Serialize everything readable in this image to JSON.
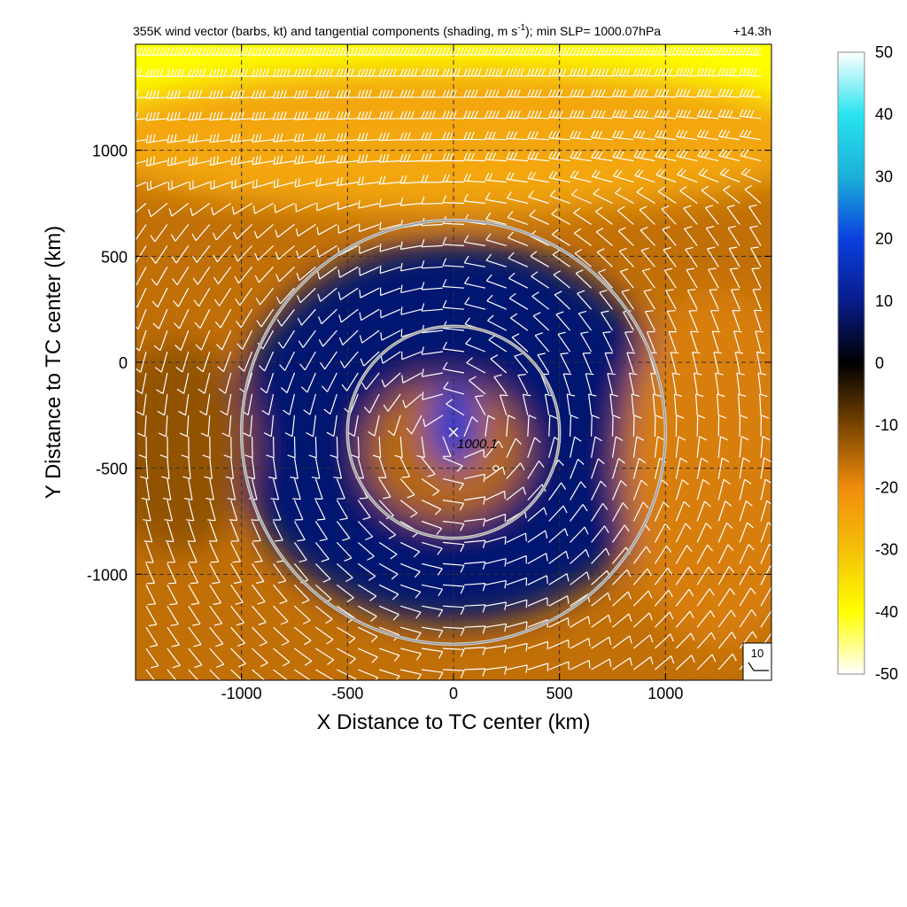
{
  "chart_data": {
    "type": "heatmap",
    "title_parts": {
      "before_sup": "355K wind vector (barbs, kt) and tangential components (shading, m s",
      "sup": "-1",
      "after_sup": "); min SLP= 1000.07hPa",
      "time": "+14.3h"
    },
    "xlabel": "X Distance to TC center (km)",
    "ylabel": "Y Distance to TC center (km)",
    "xlim": [
      -1500,
      1500
    ],
    "ylim": [
      -1500,
      1500
    ],
    "x_ticks": [
      -1000,
      -500,
      0,
      500,
      1000
    ],
    "x_tick_labels": [
      "-1000",
      "-500",
      "0",
      "500",
      "1000"
    ],
    "y_ticks": [
      1000,
      500,
      0,
      -500,
      -1000
    ],
    "y_tick_labels": [
      "1000",
      "500",
      "0",
      "-500",
      "-1000"
    ],
    "grid": true,
    "grid_style": "dashed",
    "colorbar": {
      "range": [
        -50,
        50
      ],
      "ticks": [
        50,
        40,
        30,
        20,
        10,
        0,
        -10,
        -20,
        -30,
        -40,
        -50
      ],
      "tick_labels": [
        "50",
        "40",
        "30",
        "20",
        "10",
        "0",
        "-10",
        "-20",
        "-30",
        "-40",
        "-50"
      ],
      "placement": "right",
      "stops": [
        {
          "value": 50,
          "color": "#ffffff"
        },
        {
          "value": 40,
          "color": "#28e4f0"
        },
        {
          "value": 30,
          "color": "#1ab0d8"
        },
        {
          "value": 20,
          "color": "#0a40e0"
        },
        {
          "value": 10,
          "color": "#081c8c"
        },
        {
          "value": 0,
          "color": "#000000"
        },
        {
          "value": -10,
          "color": "#7a4400"
        },
        {
          "value": -20,
          "color": "#f08c0c"
        },
        {
          "value": -30,
          "color": "#f5c008"
        },
        {
          "value": -40,
          "color": "#ffff00"
        },
        {
          "value": -50,
          "color": "#ffffff"
        }
      ]
    },
    "rings_km": [
      500,
      1000
    ],
    "ring_center_km": [
      0,
      -330
    ],
    "min_slp_marker": {
      "x_km": 0,
      "y_km": -330,
      "label": "1000.1"
    },
    "small_circle_marker": {
      "x_km": 200,
      "y_km": -500
    },
    "reference_barb": {
      "label": "10",
      "placement": "bottom-right"
    },
    "shading_regions": [
      {
        "desc": "upper band",
        "center_km": [
          0,
          1400
        ],
        "radius_km": [
          2000,
          550
        ],
        "value": -40
      },
      {
        "desc": "upper band inner",
        "center_km": [
          0,
          1050
        ],
        "radius_km": [
          1800,
          350
        ],
        "value": -25
      },
      {
        "desc": "ring positive",
        "center_km": [
          0,
          -330
        ],
        "radius_km": [
          1050,
          900
        ],
        "value": 8
      },
      {
        "desc": "core negative",
        "center_km": [
          -40,
          -420
        ],
        "radius_km": [
          380,
          330
        ],
        "value": -15
      },
      {
        "desc": "east negative",
        "center_km": [
          1250,
          -500
        ],
        "radius_km": [
          450,
          850
        ],
        "value": -18
      },
      {
        "desc": "west negative",
        "center_km": [
          -1300,
          -400
        ],
        "radius_km": [
          350,
          500
        ],
        "value": -12
      },
      {
        "desc": "inner core positive",
        "center_km": [
          0,
          -300
        ],
        "radius_km": [
          120,
          200
        ],
        "value": 18
      }
    ],
    "barb_grid": {
      "spacing_km": 100,
      "range_km": [
        -1450,
        1450
      ]
    }
  },
  "colors": {
    "grid": "#303030",
    "ring": "#cfcfcf",
    "barb": "#ffffff",
    "coastline": "#ffffff"
  }
}
